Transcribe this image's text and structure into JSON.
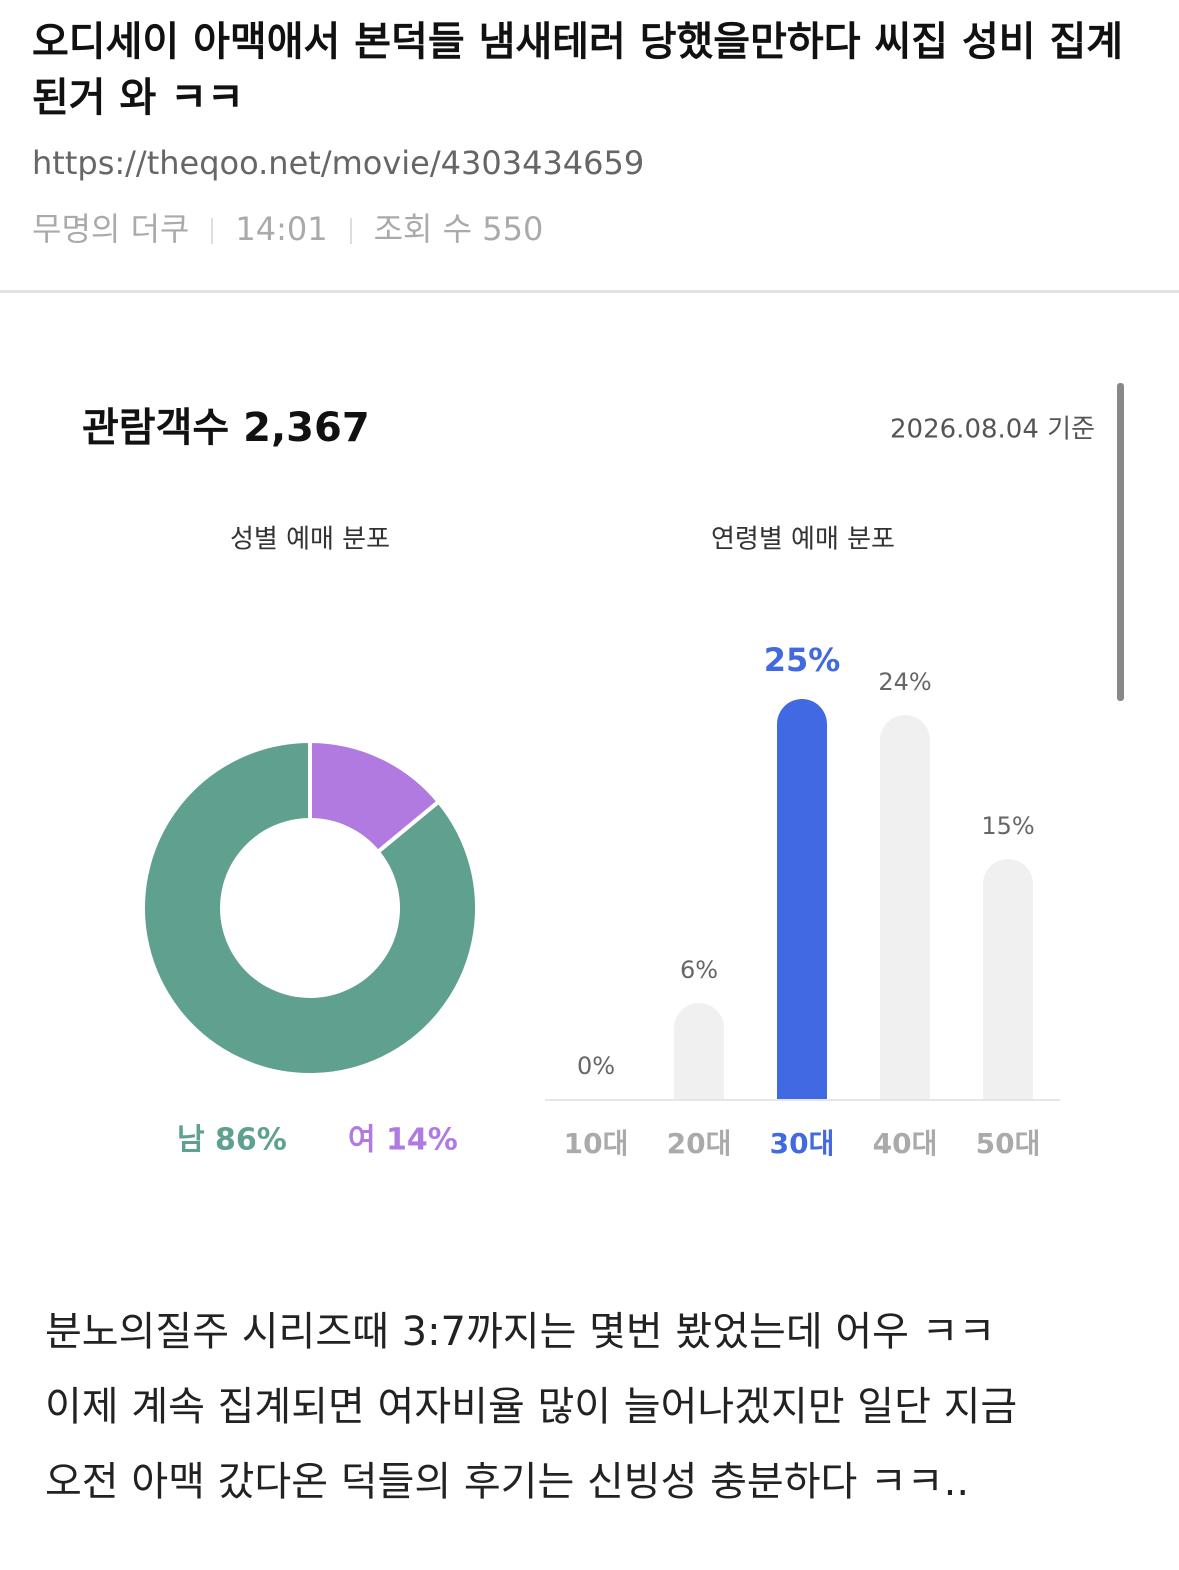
{
  "header": {
    "title": "오디세이 아맥애서 본덕들 냄새테러 당했을만하다 씨집 성비 집계된거 와 ㅋㅋ",
    "url": "https://theqoo.net/movie/4303434659",
    "author": "무명의 더쿠",
    "time": "14:01",
    "views": "조회 수 550"
  },
  "card": {
    "title": "관람객수 2,367",
    "date": "2026.08.04 기준"
  },
  "chart_data": [
    {
      "type": "donut",
      "title": "성별 예매 분포",
      "categories": [
        "남",
        "여"
      ],
      "values": [
        86,
        14
      ],
      "value_labels": [
        "86%",
        "14%"
      ],
      "colors": [
        "#5fa08e",
        "#b07ae0"
      ]
    },
    {
      "type": "bar",
      "title": "연령별 예매 분포",
      "categories": [
        "10대",
        "20대",
        "30대",
        "40대",
        "50대"
      ],
      "values": [
        0,
        6,
        25,
        24,
        15
      ],
      "value_labels": [
        "0%",
        "6%",
        "25%",
        "24%",
        "15%"
      ],
      "colors": [
        "#f0f0f0",
        "#f0f0f0",
        "#4169e1",
        "#f0f0f0",
        "#f0f0f0"
      ],
      "label_colors": [
        "#8a8a8a",
        "#8a8a8a",
        "#4169e1",
        "#8a8a8a",
        "#8a8a8a"
      ]
    }
  ],
  "body": {
    "lines": [
      "분노의질주 시리즈때 3:7까지는 몇번 봤었는데 어우 ㅋㅋ",
      "이제 계속 집계되면 여자비율 많이 늘어나겠지만 일단 지금",
      "오전 아맥 갔다온 덕들의 후기는 신빙성 충분하다  ㅋㅋ.."
    ]
  }
}
